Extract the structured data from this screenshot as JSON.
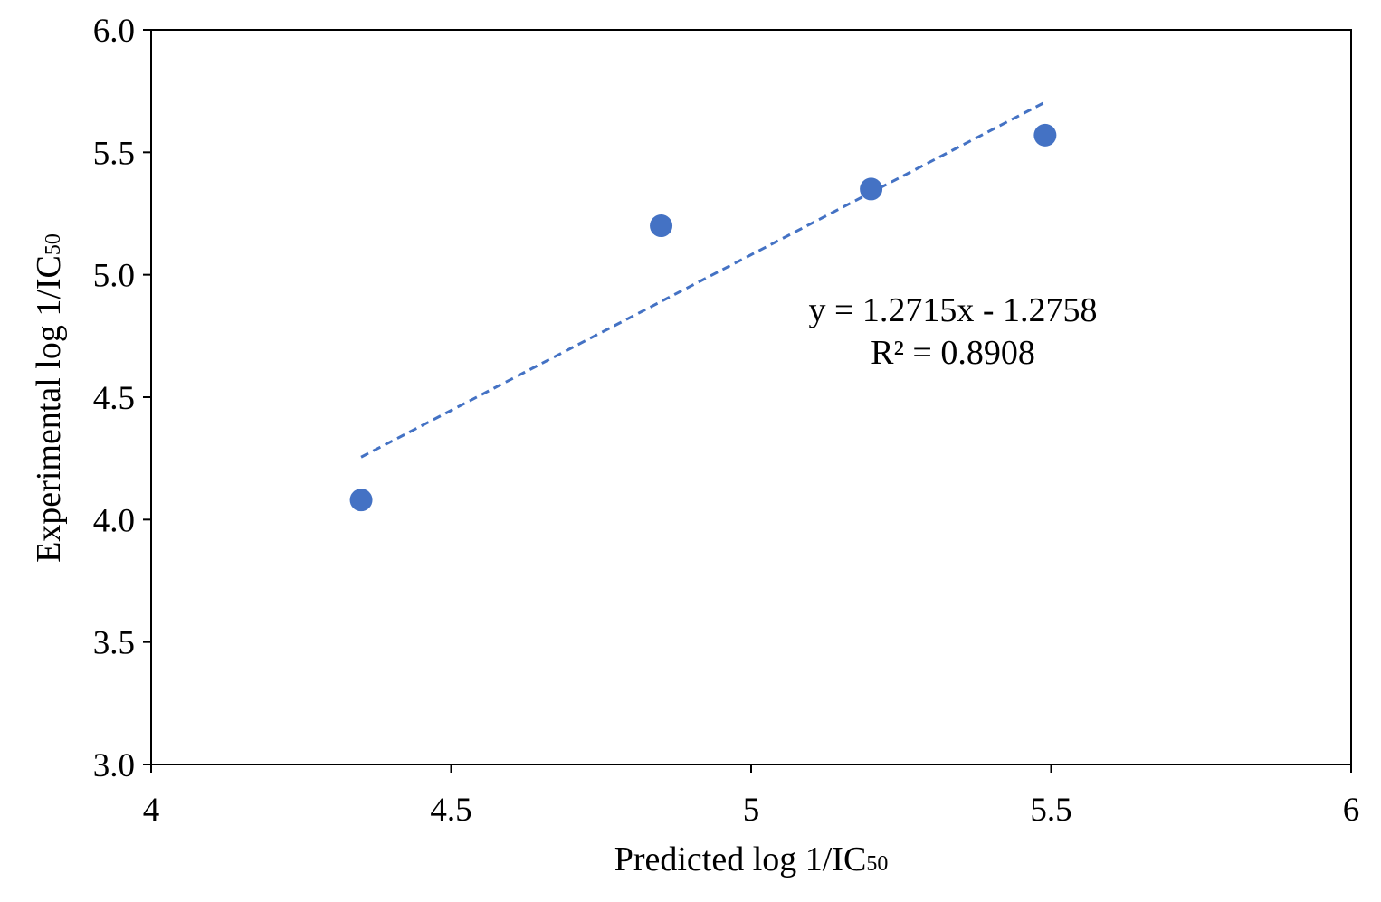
{
  "chart_data": {
    "type": "scatter",
    "title": "",
    "xlabel": "Predicted log 1/IC50",
    "ylabel": "Experimental log 1/IC50",
    "xlabel_main": "Predicted log 1/IC",
    "xlabel_sub": "50",
    "ylabel_main": "Experimental log 1/IC",
    "ylabel_sub": "50",
    "xlim": [
      4,
      6
    ],
    "ylim": [
      3.0,
      6.0
    ],
    "x_ticks": [
      4,
      4.5,
      5,
      5.5,
      6
    ],
    "x_tick_labels": [
      "4",
      "4.5",
      "5",
      "5.5",
      "6"
    ],
    "y_ticks": [
      3.0,
      3.5,
      4.0,
      4.5,
      5.0,
      5.5,
      6.0
    ],
    "y_tick_labels": [
      "3.0",
      "3.5",
      "4.0",
      "4.5",
      "5.0",
      "5.5",
      "6.0"
    ],
    "grid": false,
    "legend": "none",
    "series": [
      {
        "x": [
          4.35,
          4.85,
          5.2,
          5.49
        ],
        "y": [
          4.08,
          5.2,
          5.35,
          5.57
        ],
        "color": "#4472C4"
      }
    ],
    "trendline": {
      "type": "linear",
      "slope": 1.2715,
      "intercept": -1.2758,
      "x_range": [
        4.35,
        5.49
      ],
      "color": "#4472C4",
      "style": "dashed"
    },
    "annotations": [
      "y = 1.2715x - 1.2758",
      "R² = 0.8908"
    ]
  }
}
